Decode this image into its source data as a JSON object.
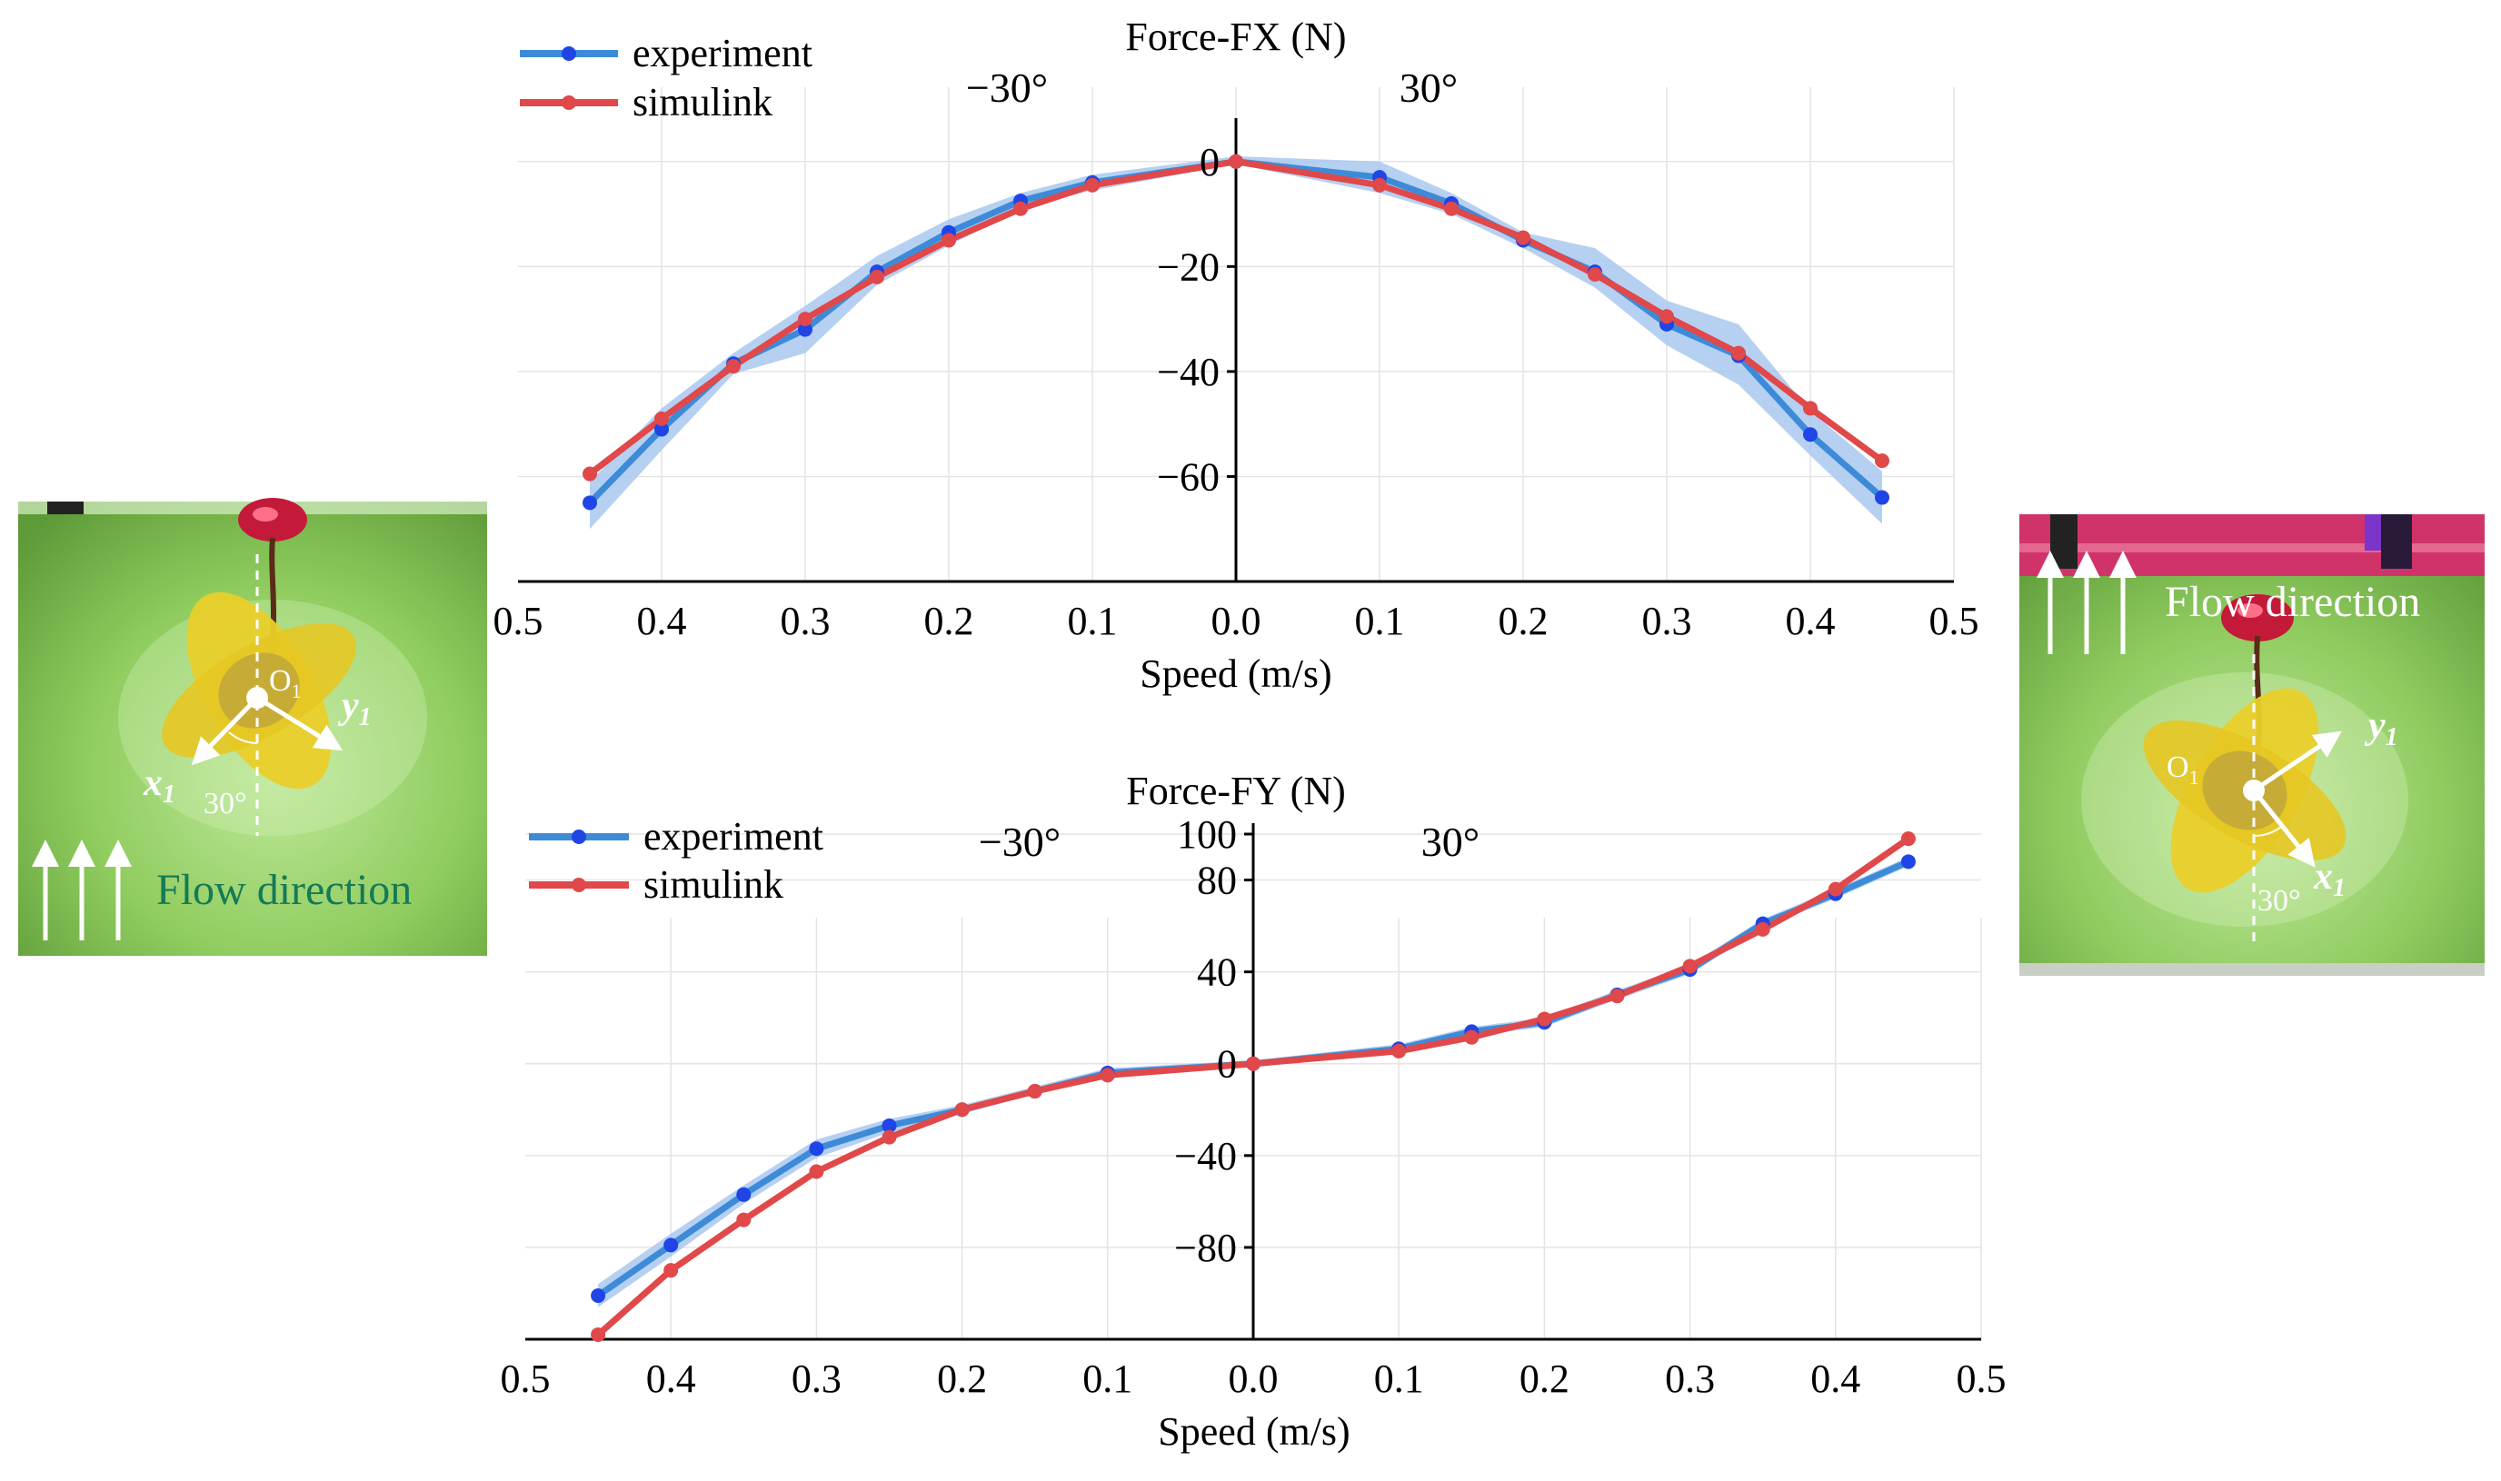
{
  "chart_data": [
    {
      "type": "line",
      "title": "Force-FX (N)",
      "xlabel": "Speed (m/s)",
      "ylabel": "",
      "xlim": [
        -0.5,
        0.5
      ],
      "ylim": [
        -80,
        10
      ],
      "x_tick_labels": [
        "0.5",
        "0.4",
        "0.3",
        "0.2",
        "0.1",
        "0.0",
        "0.1",
        "0.2",
        "0.3",
        "0.4",
        "0.5"
      ],
      "y_ticks": [
        0,
        -20,
        -40,
        -60
      ],
      "y_tick_labels": [
        "0",
        "−20",
        "−40",
        "−60"
      ],
      "region_labels": [
        "−30°",
        "30°"
      ],
      "grid": true,
      "legend_position": "top-left",
      "x": [
        -0.45,
        -0.4,
        -0.35,
        -0.3,
        -0.25,
        -0.2,
        -0.15,
        -0.1,
        0.0,
        0.1,
        0.15,
        0.2,
        0.25,
        0.3,
        0.35,
        0.4,
        0.45
      ],
      "series": [
        {
          "name": "experiment",
          "color": "#1f45e6",
          "line_color": "#3d8bd8",
          "band_color": "#a9c8ef",
          "values": [
            -65,
            -51,
            -38.5,
            -32,
            -21,
            -13.5,
            -7.5,
            -4,
            0,
            -3,
            -8,
            -15,
            -21,
            -31,
            -37,
            -52,
            -64
          ],
          "band_lower": [
            -70,
            -55,
            -40.5,
            -36.5,
            -23.5,
            -16,
            -9,
            -5.5,
            -0.5,
            -6,
            -10,
            -16.5,
            -24,
            -35,
            -42.5,
            -56,
            -69
          ],
          "band_upper": [
            -61,
            -47,
            -36.5,
            -27.5,
            -18,
            -11,
            -6,
            -2.5,
            1,
            0,
            -6,
            -13.5,
            -16.5,
            -26.5,
            -31,
            -47.5,
            -59
          ]
        },
        {
          "name": "simulink",
          "color": "#e0484a",
          "line_color": "#e0484a",
          "values": [
            -59.5,
            -49,
            -39,
            -30,
            -22,
            -15,
            -9,
            -4.5,
            0,
            -4.5,
            -9,
            -14.5,
            -21.5,
            -29.5,
            -36.5,
            -47,
            -57
          ]
        }
      ]
    },
    {
      "type": "line",
      "title": "Force-FY (N)",
      "xlabel": "Speed (m/s)",
      "ylabel": "",
      "xlim": [
        -0.5,
        0.5
      ],
      "ylim": [
        -120,
        100
      ],
      "x_tick_labels": [
        "0.5",
        "0.4",
        "0.3",
        "0.2",
        "0.1",
        "0.0",
        "0.1",
        "0.2",
        "0.3",
        "0.4",
        "0.5"
      ],
      "y_ticks": [
        100,
        80,
        40,
        0,
        -40,
        -80
      ],
      "y_tick_labels": [
        "100",
        "80",
        "40",
        "0",
        "−40",
        "−80"
      ],
      "region_labels": [
        "−30°",
        "30°"
      ],
      "grid": true,
      "legend_position": "top-left",
      "x": [
        -0.45,
        -0.4,
        -0.35,
        -0.3,
        -0.25,
        -0.2,
        -0.15,
        -0.1,
        0.0,
        0.1,
        0.15,
        0.2,
        0.25,
        0.3,
        0.35,
        0.4,
        0.45
      ],
      "series": [
        {
          "name": "experiment",
          "color": "#1f45e6",
          "line_color": "#3d8bd8",
          "band_color": "#a9c8ef",
          "values": [
            -101,
            -79,
            -57,
            -37,
            -27,
            -20,
            -12,
            -4,
            0,
            6.5,
            14,
            18,
            30,
            41,
            61,
            74,
            88
          ],
          "band_lower": [
            -106,
            -84,
            -61,
            -41,
            -30,
            -22,
            -13,
            -6,
            -1.5,
            4.5,
            12,
            16,
            28,
            39,
            59,
            72,
            86
          ],
          "band_upper": [
            -96,
            -74,
            -53,
            -33,
            -24,
            -18,
            -10,
            -2,
            1.5,
            8.5,
            16,
            20,
            32,
            43,
            63,
            76,
            90
          ]
        },
        {
          "name": "simulink",
          "color": "#e0484a",
          "line_color": "#e0484a",
          "values": [
            -118,
            -90,
            -68,
            -47,
            -32,
            -20,
            -12,
            -5,
            0,
            5.5,
            11.5,
            19.5,
            29.5,
            42.5,
            58.5,
            76,
            98
          ]
        }
      ]
    }
  ],
  "photos": [
    {
      "flow_label": "Flow direction",
      "origin_label": "O",
      "origin_subscript": "1",
      "x_axis_label": "x",
      "y_axis_label": "y",
      "axis_subscript": "1",
      "angle_label": "30°",
      "arrow_color": "#ffffff",
      "flow_text_color": "#157a55"
    },
    {
      "flow_label": "Flow direction",
      "origin_label": "O",
      "origin_subscript": "1",
      "x_axis_label": "x",
      "y_axis_label": "y",
      "axis_subscript": "1",
      "angle_label": "30°",
      "arrow_color": "#ffffff",
      "flow_text_color": "#ffffff"
    }
  ]
}
